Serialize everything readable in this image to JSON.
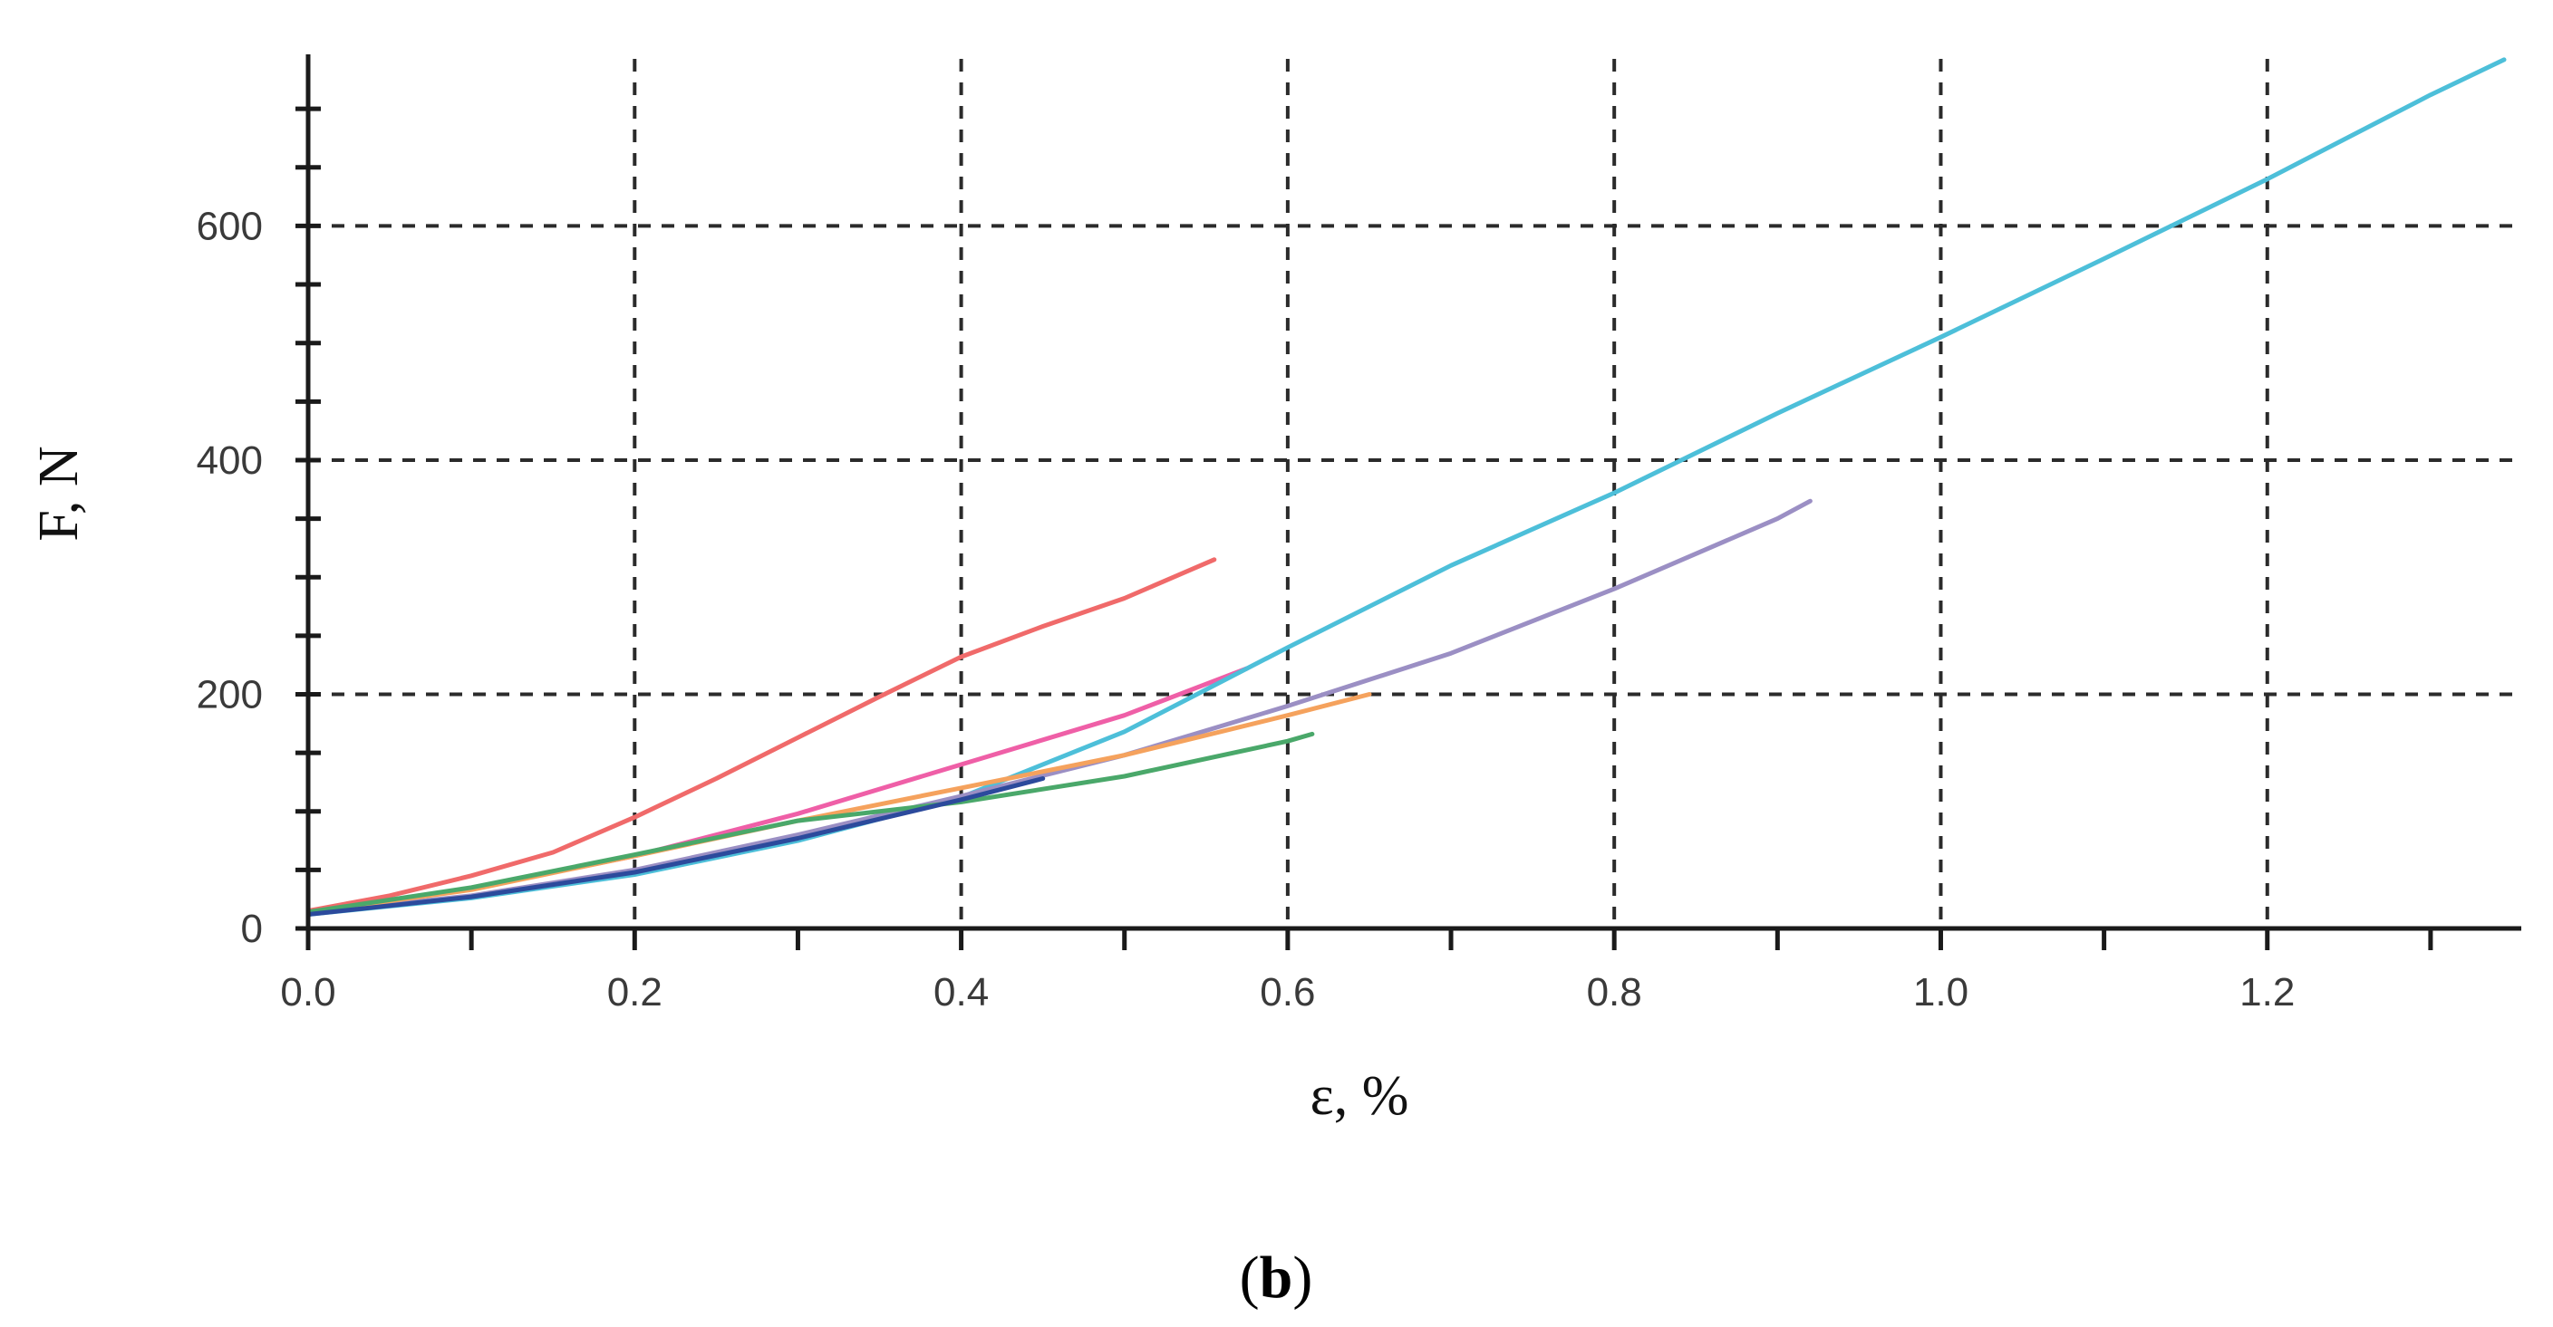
{
  "panel_label": {
    "open": "(",
    "letter": "b",
    "close": ")"
  },
  "chart_data": {
    "type": "line",
    "xlabel": "ε, %",
    "ylabel": "F, N",
    "xlim": [
      0,
      1.36
    ],
    "ylim": [
      0,
      745
    ],
    "x_ticks": [
      0.0,
      0.2,
      0.4,
      0.6,
      0.8,
      1.0,
      1.2
    ],
    "x_tick_labels": [
      "0.0",
      "0.2",
      "0.4",
      "0.6",
      "0.8",
      "1.0",
      "1.2"
    ],
    "y_ticks": [
      0,
      200,
      400,
      600
    ],
    "y_tick_labels": [
      "0",
      "200",
      "400",
      "600"
    ],
    "x_minor_step": 0.1,
    "y_minor_step": 50,
    "grid": true,
    "series": [
      {
        "color": "#f06a6a",
        "points": [
          [
            0,
            15
          ],
          [
            0.05,
            28
          ],
          [
            0.1,
            45
          ],
          [
            0.15,
            65
          ],
          [
            0.2,
            95
          ],
          [
            0.25,
            128
          ],
          [
            0.3,
            163
          ],
          [
            0.35,
            198
          ],
          [
            0.4,
            232
          ],
          [
            0.45,
            258
          ],
          [
            0.5,
            282
          ],
          [
            0.555,
            315
          ]
        ]
      },
      {
        "color": "#ef5fa7",
        "points": [
          [
            0,
            14
          ],
          [
            0.1,
            34
          ],
          [
            0.2,
            62
          ],
          [
            0.3,
            98
          ],
          [
            0.4,
            140
          ],
          [
            0.5,
            182
          ],
          [
            0.575,
            222
          ]
        ]
      },
      {
        "color": "#4dbfd9",
        "points": [
          [
            0,
            12
          ],
          [
            0.1,
            26
          ],
          [
            0.2,
            46
          ],
          [
            0.3,
            75
          ],
          [
            0.4,
            112
          ],
          [
            0.5,
            168
          ],
          [
            0.6,
            240
          ],
          [
            0.7,
            310
          ],
          [
            0.8,
            372
          ],
          [
            0.9,
            440
          ],
          [
            1.0,
            505
          ],
          [
            1.1,
            572
          ],
          [
            1.2,
            640
          ],
          [
            1.3,
            712
          ],
          [
            1.345,
            742
          ]
        ]
      },
      {
        "color": "#9b8fc4",
        "points": [
          [
            0,
            13
          ],
          [
            0.1,
            28
          ],
          [
            0.2,
            50
          ],
          [
            0.3,
            80
          ],
          [
            0.4,
            113
          ],
          [
            0.5,
            148
          ],
          [
            0.6,
            190
          ],
          [
            0.7,
            235
          ],
          [
            0.8,
            290
          ],
          [
            0.9,
            350
          ],
          [
            0.92,
            365
          ]
        ]
      },
      {
        "color": "#f5a25d",
        "points": [
          [
            0,
            14
          ],
          [
            0.1,
            33
          ],
          [
            0.2,
            62
          ],
          [
            0.3,
            92
          ],
          [
            0.4,
            120
          ],
          [
            0.5,
            148
          ],
          [
            0.6,
            182
          ],
          [
            0.65,
            200
          ]
        ]
      },
      {
        "color": "#4aa86a",
        "points": [
          [
            0,
            14
          ],
          [
            0.1,
            35
          ],
          [
            0.2,
            63
          ],
          [
            0.3,
            92
          ],
          [
            0.4,
            108
          ],
          [
            0.5,
            130
          ],
          [
            0.6,
            160
          ],
          [
            0.615,
            166
          ]
        ]
      },
      {
        "color": "#2c4a9c",
        "points": [
          [
            0,
            12
          ],
          [
            0.1,
            27
          ],
          [
            0.2,
            48
          ],
          [
            0.3,
            77
          ],
          [
            0.4,
            110
          ],
          [
            0.45,
            128
          ]
        ]
      }
    ]
  }
}
